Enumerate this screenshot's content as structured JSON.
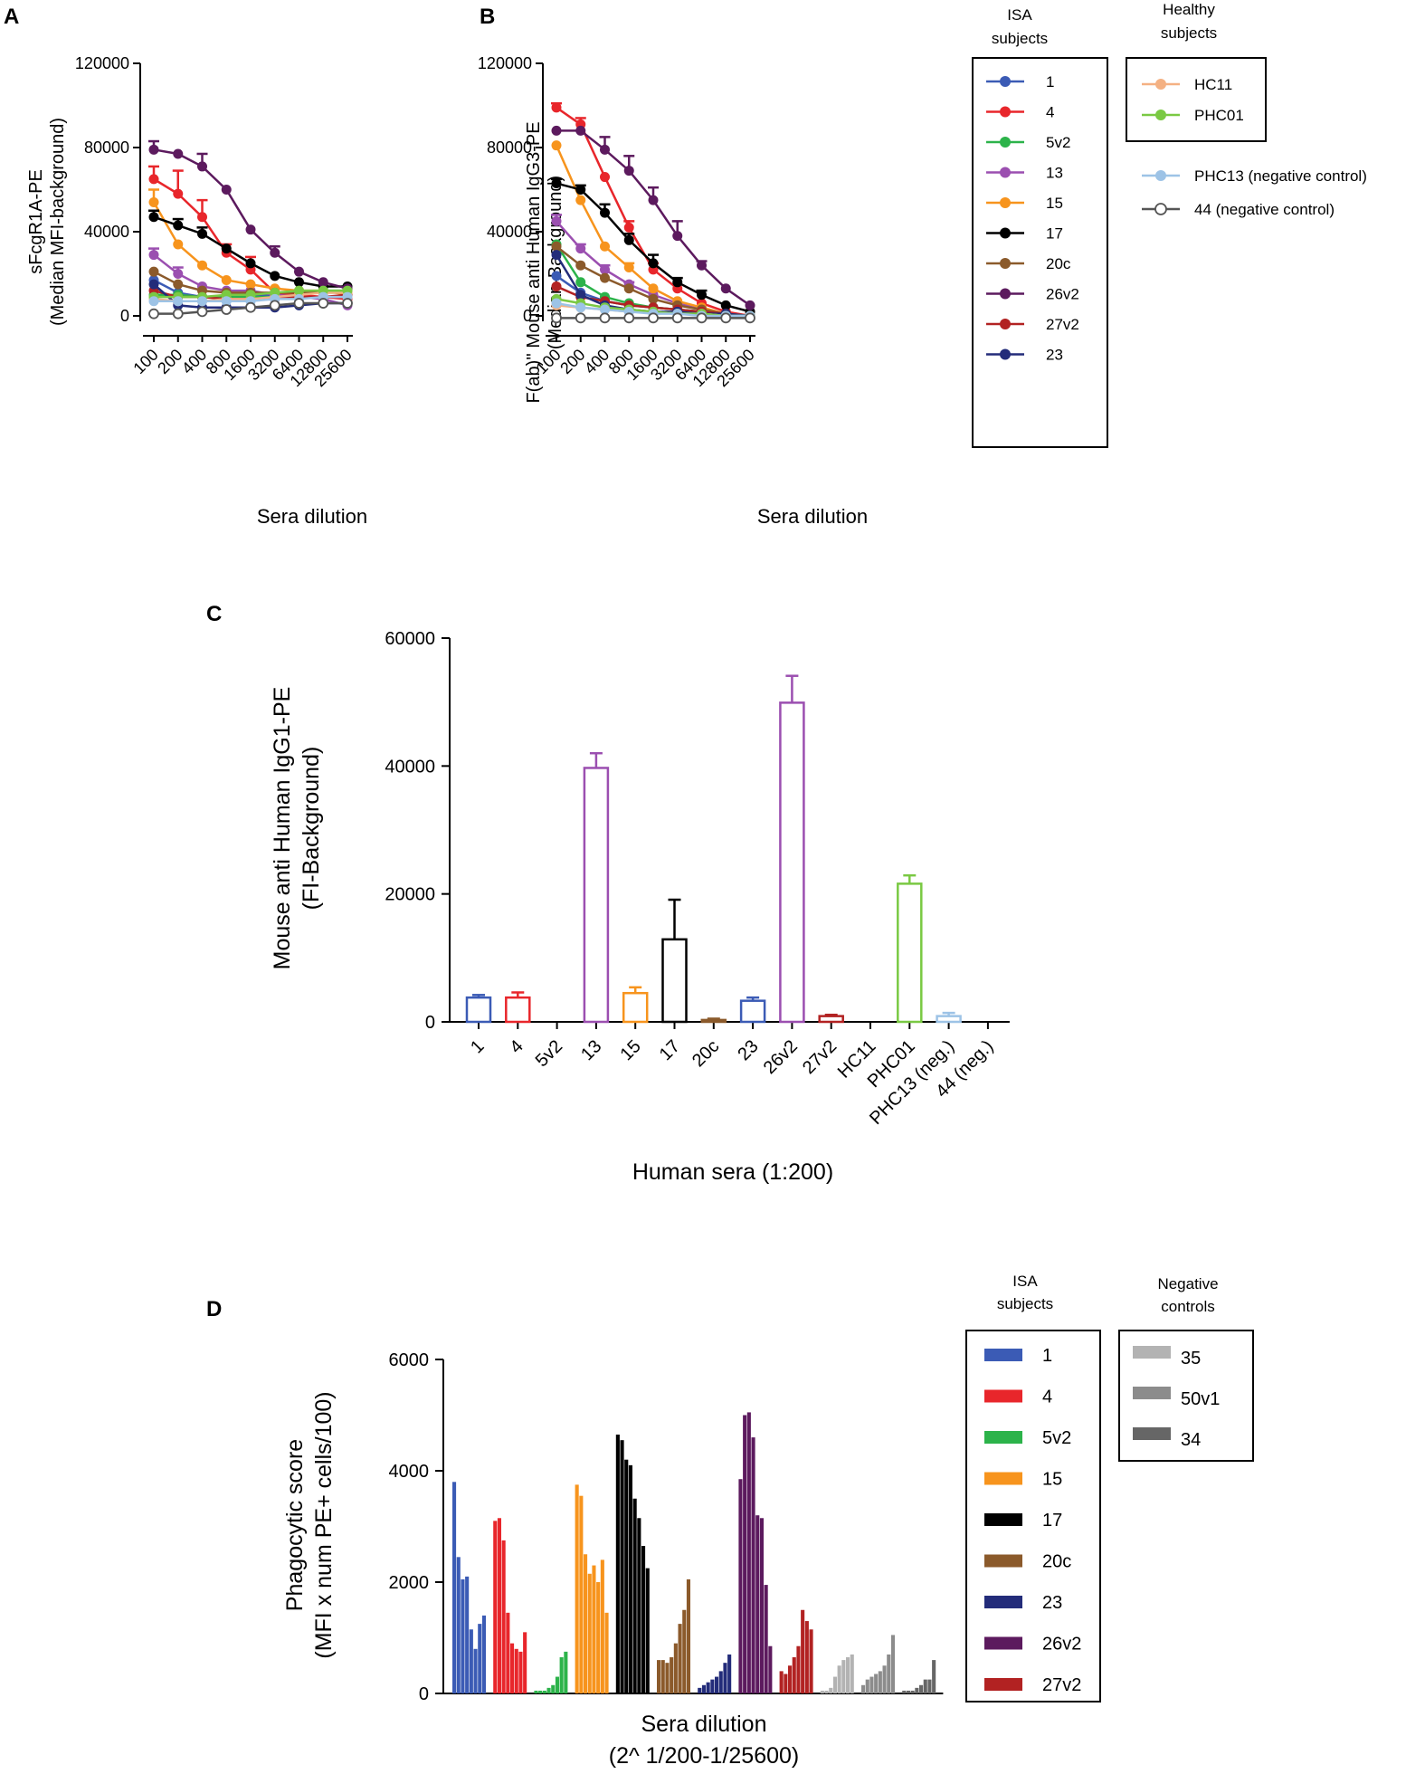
{
  "chart_data": [
    {
      "id": "A",
      "type": "line",
      "panel_label": "A",
      "title": "",
      "xlabel": "Sera dilution",
      "ylabel": "sFcgR1A-PE",
      "ylabel2": "(Median MFI-background)",
      "categories": [
        "100",
        "200",
        "400",
        "800",
        "1600",
        "3200",
        "6400",
        "12800",
        "25600"
      ],
      "ylim": [
        0,
        120000
      ],
      "yticks": [
        "0",
        "40000",
        "80000",
        "120000"
      ],
      "series": [
        {
          "name": "1",
          "color": "#3b5bb5",
          "values": [
            17000,
            11000,
            9000,
            9000,
            10000,
            10000,
            11000,
            11000,
            12000
          ]
        },
        {
          "name": "4",
          "color": "#e8262b",
          "values": [
            65000,
            58000,
            47000,
            30000,
            22000,
            11000,
            10000,
            9000,
            8000
          ],
          "errors": [
            6000,
            11000,
            8000,
            4000,
            6000,
            2000,
            0,
            0,
            0
          ]
        },
        {
          "name": "5v2",
          "color": "#2cb34a",
          "values": [
            10000,
            10000,
            9000,
            9000,
            9000,
            9000,
            10000,
            12000,
            12000
          ]
        },
        {
          "name": "13",
          "color": "#9b4fb0",
          "values": [
            29000,
            20000,
            14000,
            12000,
            12000,
            10000,
            9000,
            8000,
            5000
          ],
          "errors": [
            3000,
            3000,
            0,
            0,
            0,
            0,
            0,
            0,
            0
          ]
        },
        {
          "name": "15",
          "color": "#f7941d",
          "values": [
            54000,
            34000,
            24000,
            17000,
            15000,
            13000,
            12000,
            12000,
            10000
          ],
          "errors": [
            6000,
            0,
            0,
            0,
            0,
            0,
            0,
            0,
            0
          ]
        },
        {
          "name": "17",
          "color": "#000000",
          "values": [
            47000,
            43000,
            39000,
            32000,
            25000,
            19000,
            16000,
            14000,
            14000
          ],
          "errors": [
            3000,
            3000,
            3000,
            0,
            0,
            0,
            0,
            0,
            0
          ]
        },
        {
          "name": "20c",
          "color": "#8b5a2b",
          "values": [
            21000,
            15000,
            12000,
            11000,
            11000,
            11000,
            11000,
            11000,
            11000
          ]
        },
        {
          "name": "26v2",
          "color": "#5c1a5e",
          "values": [
            79000,
            77000,
            71000,
            60000,
            41000,
            30000,
            21000,
            16000,
            13000
          ],
          "errors": [
            4000,
            0,
            6000,
            0,
            0,
            3000,
            0,
            0,
            0
          ]
        },
        {
          "name": "27v2",
          "color": "#b22222",
          "values": [
            12000,
            9000,
            9000,
            8000,
            8000,
            8000,
            9000,
            9000,
            10000
          ]
        },
        {
          "name": "23",
          "color": "#232c7a",
          "values": [
            15000,
            5000,
            4000,
            4000,
            4000,
            4000,
            5000,
            6000,
            6000
          ]
        },
        {
          "name": "HC11",
          "color": "#f4b183",
          "values": [
            8000,
            7000,
            7000,
            8000,
            8000,
            9000,
            10000,
            11000,
            11000
          ]
        },
        {
          "name": "PHC01",
          "color": "#7ac943",
          "values": [
            9000,
            9000,
            9000,
            10000,
            10000,
            11000,
            12000,
            12000,
            12000
          ]
        },
        {
          "name": "PHC13",
          "color": "#9dc3e6",
          "values": [
            7000,
            7000,
            7000,
            7000,
            7000,
            8000,
            8000,
            9000,
            9000
          ]
        },
        {
          "name": "44",
          "color": "#555555",
          "open": true,
          "values": [
            1000,
            1000,
            2000,
            3000,
            4000,
            5000,
            6000,
            6000,
            6000
          ]
        }
      ]
    },
    {
      "id": "B",
      "type": "line",
      "panel_label": "B",
      "title": "",
      "xlabel": "Sera dilution",
      "ylabel": "F(ab)'' Mouse anti Human IgG3-PE",
      "ylabel2": "(Median-Background)",
      "categories": [
        "100",
        "200",
        "400",
        "800",
        "1600",
        "3200",
        "6400",
        "12800",
        "25600"
      ],
      "ylim": [
        0,
        120000
      ],
      "yticks": [
        "0",
        "40000",
        "80000",
        "120000"
      ],
      "series": [
        {
          "name": "1",
          "color": "#3b5bb5",
          "values": [
            19000,
            11000,
            7000,
            5000,
            4000,
            3000,
            2000,
            1000,
            0
          ]
        },
        {
          "name": "4",
          "color": "#e8262b",
          "values": [
            99000,
            91000,
            66000,
            42000,
            22000,
            13000,
            6000,
            2000,
            0
          ],
          "errors": [
            2000,
            3000,
            0,
            3000,
            3000,
            0,
            0,
            0,
            0
          ]
        },
        {
          "name": "5v2",
          "color": "#2cb34a",
          "values": [
            34000,
            16000,
            9000,
            6000,
            4000,
            3000,
            2000,
            1000,
            0
          ]
        },
        {
          "name": "13",
          "color": "#9b4fb0",
          "values": [
            45000,
            32000,
            22000,
            15000,
            10000,
            6000,
            3000,
            1000,
            0
          ],
          "errors": [
            3000,
            2000,
            2000,
            1000,
            0,
            0,
            0,
            0,
            0
          ]
        },
        {
          "name": "15",
          "color": "#f7941d",
          "values": [
            81000,
            55000,
            33000,
            23000,
            13000,
            7000,
            4000,
            1000,
            0
          ],
          "errors": [
            0,
            0,
            0,
            2000,
            0,
            0,
            0,
            0,
            0
          ]
        },
        {
          "name": "17",
          "color": "#000000",
          "values": [
            63000,
            60000,
            49000,
            36000,
            25000,
            16000,
            10000,
            5000,
            2000
          ],
          "errors": [
            2000,
            2000,
            4000,
            3000,
            4000,
            2000,
            2000,
            0,
            0
          ]
        },
        {
          "name": "20c",
          "color": "#8b5a2b",
          "values": [
            33000,
            24000,
            18000,
            13000,
            8000,
            5000,
            3000,
            1000,
            0
          ]
        },
        {
          "name": "26v2",
          "color": "#5c1a5e",
          "values": [
            88000,
            88000,
            79000,
            69000,
            55000,
            38000,
            24000,
            13000,
            5000
          ],
          "errors": [
            0,
            0,
            6000,
            7000,
            6000,
            7000,
            2000,
            0,
            0
          ]
        },
        {
          "name": "27v2",
          "color": "#b22222",
          "values": [
            14000,
            9000,
            7000,
            5000,
            4000,
            3000,
            2000,
            1000,
            0
          ]
        },
        {
          "name": "23",
          "color": "#232c7a",
          "values": [
            29000,
            10000,
            5000,
            3000,
            2000,
            2000,
            1000,
            1000,
            0
          ]
        },
        {
          "name": "HC11",
          "color": "#f4b183",
          "values": [
            5000,
            4000,
            3000,
            2000,
            2000,
            1000,
            1000,
            0,
            0
          ]
        },
        {
          "name": "PHC01",
          "color": "#7ac943",
          "values": [
            8000,
            6000,
            4000,
            3000,
            2000,
            1000,
            1000,
            0,
            0
          ]
        },
        {
          "name": "PHC13",
          "color": "#9dc3e6",
          "values": [
            6000,
            4000,
            3000,
            2000,
            1000,
            1000,
            0,
            0,
            0
          ]
        },
        {
          "name": "44",
          "color": "#555555",
          "open": true,
          "values": [
            -1000,
            -1000,
            -1000,
            -1000,
            -1000,
            -1000,
            -1000,
            -1000,
            -1000
          ]
        }
      ]
    },
    {
      "id": "C",
      "type": "bar",
      "panel_label": "C",
      "title": "",
      "xlabel": "Human sera (1:200)",
      "ylabel": "Mouse anti Human IgG1-PE",
      "ylabel2": "(FI-Background)",
      "ylim": [
        0,
        60000
      ],
      "yticks": [
        "0",
        "20000",
        "40000",
        "60000"
      ],
      "categories": [
        "1",
        "4",
        "5v2",
        "13",
        "15",
        "17",
        "20c",
        "23",
        "26v2",
        "27v2",
        "HC11",
        "PHC01",
        "PHC13 (neg.)",
        "44 (neg.)"
      ],
      "values": [
        3800,
        3800,
        0,
        39700,
        4500,
        12900,
        300,
        3300,
        49900,
        900,
        0,
        21600,
        900,
        0
      ],
      "errors": [
        400,
        800,
        0,
        2300,
        900,
        6200,
        200,
        500,
        4200,
        200,
        0,
        1300,
        500,
        0
      ],
      "colors": [
        "#3b5bb5",
        "#e8262b",
        "#2cb34a",
        "#9b4fb0",
        "#f7941d",
        "#000000",
        "#8b5a2b",
        "#3b5bb5",
        "#9b4fb0",
        "#b22222",
        "#f4b183",
        "#7ac943",
        "#9dc3e6",
        "#555555"
      ]
    },
    {
      "id": "D",
      "type": "bar",
      "panel_label": "D",
      "title": "",
      "xlabel": "Sera dilution",
      "xlabel2": "(2^ 1/200-1/25600)",
      "ylabel": "Phagocytic score",
      "ylabel2": "(MFI x num PE+ cells/100)",
      "ylim": [
        0,
        6000
      ],
      "yticks": [
        "0",
        "2000",
        "4000",
        "6000"
      ],
      "groups": [
        {
          "name": "1",
          "color": "#3b5bb5",
          "values": [
            3800,
            2450,
            2050,
            2100,
            1150,
            800,
            1250,
            1400
          ]
        },
        {
          "name": "4",
          "color": "#e8262b",
          "values": [
            3100,
            3150,
            2750,
            1450,
            900,
            800,
            750,
            1100
          ]
        },
        {
          "name": "5v2",
          "color": "#2cb34a",
          "values": [
            50,
            50,
            50,
            100,
            150,
            300,
            650,
            750
          ]
        },
        {
          "name": "15",
          "color": "#f7941d",
          "values": [
            3750,
            3550,
            2500,
            2150,
            2300,
            2000,
            2400,
            1450
          ]
        },
        {
          "name": "17",
          "color": "#000000",
          "values": [
            4650,
            4550,
            4200,
            4100,
            3500,
            3150,
            2650,
            2250
          ]
        },
        {
          "name": "20c",
          "color": "#8b5a2b",
          "values": [
            600,
            600,
            550,
            650,
            900,
            1250,
            1500,
            2050
          ]
        },
        {
          "name": "23",
          "color": "#232c7a",
          "values": [
            100,
            150,
            200,
            250,
            300,
            400,
            550,
            700
          ]
        },
        {
          "name": "26v2",
          "color": "#5c1a5e",
          "values": [
            3850,
            5000,
            5050,
            4600,
            3200,
            3150,
            1950,
            850
          ]
        },
        {
          "name": "27v2",
          "color": "#b22222",
          "values": [
            400,
            350,
            500,
            650,
            850,
            1500,
            1300,
            1150
          ]
        },
        {
          "name": "35",
          "color": "#b3b3b3",
          "values": [
            50,
            50,
            100,
            300,
            500,
            600,
            650,
            700
          ]
        },
        {
          "name": "50v1",
          "color": "#8c8c8c",
          "values": [
            150,
            250,
            300,
            350,
            400,
            500,
            700,
            1050
          ]
        },
        {
          "name": "34",
          "color": "#666666",
          "values": [
            50,
            50,
            50,
            100,
            150,
            250,
            250,
            600
          ]
        }
      ]
    }
  ],
  "legend_ab": {
    "isa_title_1": "ISA",
    "isa_title_2": "subjects",
    "isa_items": [
      {
        "label": "1",
        "color": "#3b5bb5"
      },
      {
        "label": "4",
        "color": "#e8262b"
      },
      {
        "label": "5v2",
        "color": "#2cb34a"
      },
      {
        "label": "13",
        "color": "#9b4fb0"
      },
      {
        "label": "15",
        "color": "#f7941d"
      },
      {
        "label": "17",
        "color": "#000000"
      },
      {
        "label": "20c",
        "color": "#8b5a2b"
      },
      {
        "label": "26v2",
        "color": "#5c1a5e"
      },
      {
        "label": "27v2",
        "color": "#b22222"
      },
      {
        "label": "23",
        "color": "#232c7a"
      }
    ],
    "healthy_title_1": "Healthy",
    "healthy_title_2": "subjects",
    "healthy_items": [
      {
        "label": "HC11",
        "color": "#f4b183"
      },
      {
        "label": "PHC01",
        "color": "#7ac943"
      }
    ],
    "neg_items": [
      {
        "label": "PHC13 (negative control)",
        "color": "#9dc3e6",
        "open": false
      },
      {
        "label": "44 (negative control)",
        "color": "#555555",
        "open": true
      }
    ]
  },
  "legend_d": {
    "isa_title_1": "ISA",
    "isa_title_2": "subjects",
    "isa_items": [
      {
        "label": "1",
        "color": "#3b5bb5"
      },
      {
        "label": "4",
        "color": "#e8262b"
      },
      {
        "label": "5v2",
        "color": "#2cb34a"
      },
      {
        "label": "15",
        "color": "#f7941d"
      },
      {
        "label": "17",
        "color": "#000000"
      },
      {
        "label": "20c",
        "color": "#8b5a2b"
      },
      {
        "label": "23",
        "color": "#232c7a"
      },
      {
        "label": "26v2",
        "color": "#5c1a5e"
      },
      {
        "label": "27v2",
        "color": "#b22222"
      }
    ],
    "neg_title_1": "Negative",
    "neg_title_2": "controls",
    "neg_items": [
      {
        "label": "35",
        "color": "#b3b3b3"
      },
      {
        "label": "50v1",
        "color": "#8c8c8c"
      },
      {
        "label": "34",
        "color": "#666666"
      }
    ]
  }
}
